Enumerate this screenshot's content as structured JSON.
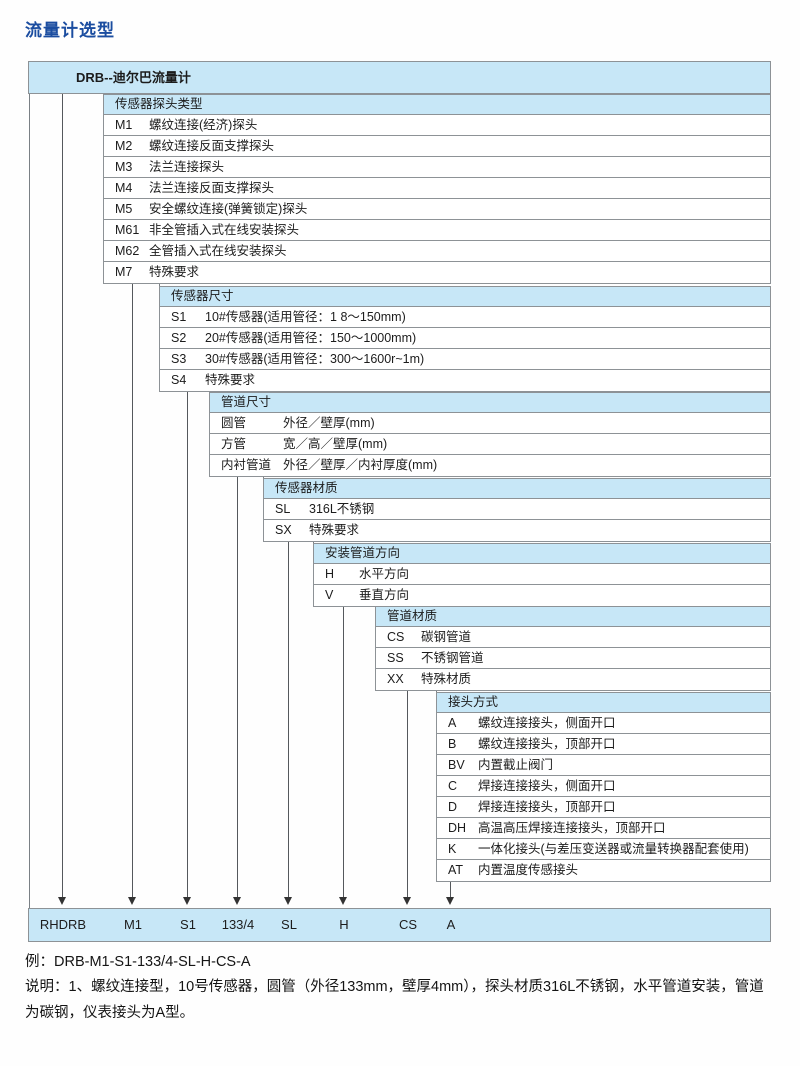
{
  "page_title": "流量计选型",
  "diagram": {
    "root_label": "DRB--迪尔巴流量计",
    "sections": [
      {
        "header": "传感器探头类型",
        "items": [
          {
            "code": "M1",
            "label": "螺纹连接(经济)探头"
          },
          {
            "code": "M2",
            "label": "螺纹连接反面支撑探头"
          },
          {
            "code": "M3",
            "label": "法兰连接探头"
          },
          {
            "code": "M4",
            "label": "法兰连接反面支撑探头"
          },
          {
            "code": "M5",
            "label": "安全螺纹连接(弹簧锁定)探头"
          },
          {
            "code": "M61",
            "label": "非全管插入式在线安装探头"
          },
          {
            "code": "M62",
            "label": "全管插入式在线安装探头"
          },
          {
            "code": "M7",
            "label": "特殊要求"
          }
        ]
      },
      {
        "header": "传感器尺寸",
        "items": [
          {
            "code": "S1",
            "label": "10#传感器(适用管径：1 8～150mm)"
          },
          {
            "code": "S2",
            "label": "20#传感器(适用管径：150～1000mm)"
          },
          {
            "code": "S3",
            "label": "30#传感器(适用管径：300～1600r~1m)"
          },
          {
            "code": "S4",
            "label": "特殊要求"
          }
        ]
      },
      {
        "header": "管道尺寸",
        "items": [
          {
            "code": "圆管",
            "label": "外径／壁厚(mm)"
          },
          {
            "code": "方管",
            "label": "宽／高／壁厚(mm)"
          },
          {
            "code": "内衬管道",
            "label": "外径／壁厚／内衬厚度(mm)"
          }
        ]
      },
      {
        "header": "传感器材质",
        "items": [
          {
            "code": "SL",
            "label": "316L不锈钢"
          },
          {
            "code": "SX",
            "label": "特殊要求"
          }
        ]
      },
      {
        "header": "安装管道方向",
        "items": [
          {
            "code": "H",
            "label": "水平方向"
          },
          {
            "code": "V",
            "label": "垂直方向"
          }
        ]
      },
      {
        "header": "管道材质",
        "items": [
          {
            "code": "CS",
            "label": "碳钢管道"
          },
          {
            "code": "SS",
            "label": "不锈钢管道"
          },
          {
            "code": "XX",
            "label": "特殊材质"
          }
        ]
      },
      {
        "header": "接头方式",
        "items": [
          {
            "code": "A",
            "label": "螺纹连接接头，侧面开口"
          },
          {
            "code": "B",
            "label": "螺纹连接接头，顶部开口"
          },
          {
            "code": "BV",
            "label": "内置截止阀门"
          },
          {
            "code": "C",
            "label": "焊接连接接头，侧面开口"
          },
          {
            "code": "D",
            "label": "焊接连接接头，顶部开口"
          },
          {
            "code": "DH",
            "label": "高温高压焊接连接接头，顶部开口"
          },
          {
            "code": "K",
            "label": "一体化接头(与差压变送器或流量转换器配套使用)"
          },
          {
            "code": "AT",
            "label": "内置温度传感接头"
          }
        ]
      }
    ],
    "result_codes": [
      "RHDRB",
      "M1",
      "S1",
      "133/4",
      "SL",
      "H",
      "CS",
      "A"
    ]
  },
  "example": {
    "code_line": "例：DRB-M1-S1-133/4-SL-H-CS-A",
    "description": "说明：1、螺纹连接型，10号传感器，圆管（外径133mm，壁厚4mm），探头材质316L不锈钢，水平管道安装，管道为碳钢，仪表接头为A型。"
  },
  "colors": {
    "title_blue": "#1b4da0",
    "box_fill_blue": "#c7e7f7",
    "border_gray": "#8d9296",
    "line_dark": "#55585c"
  }
}
